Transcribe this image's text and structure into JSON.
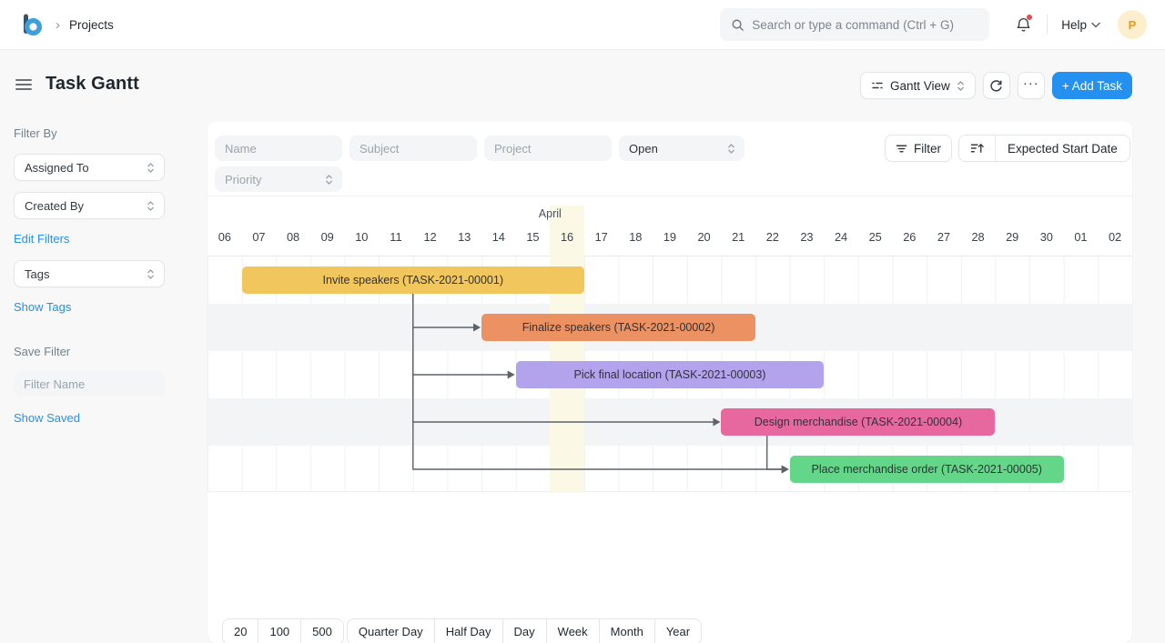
{
  "navbar": {
    "breadcrumb": "Projects",
    "breadcrumb_separator": "›",
    "search_placeholder": "Search or type a command (Ctrl + G)",
    "help_label": "Help",
    "avatar_initial": "P"
  },
  "header": {
    "title": "Task Gantt",
    "view_selector_label": "Gantt View",
    "more_options_glyph": "···",
    "add_task_label": "+ Add Task"
  },
  "sidebar": {
    "filter_by_label": "Filter By",
    "assigned_to_label": "Assigned To",
    "created_by_label": "Created By",
    "edit_filters_link": "Edit Filters",
    "tags_label": "Tags",
    "show_tags_link": "Show Tags",
    "save_filter_label": "Save Filter",
    "filter_name_placeholder": "Filter Name",
    "show_saved_link": "Show Saved"
  },
  "filters": {
    "name_placeholder": "Name",
    "subject_placeholder": "Subject",
    "project_placeholder": "Project",
    "status_value": "Open",
    "priority_placeholder": "Priority",
    "filter_button_label": "Filter",
    "sort_field_label": "Expected Start Date"
  },
  "gantt": {
    "month_label": "April",
    "dates": [
      "06",
      "07",
      "08",
      "09",
      "10",
      "11",
      "12",
      "13",
      "14",
      "15",
      "16",
      "17",
      "18",
      "19",
      "20",
      "21",
      "22",
      "23",
      "24",
      "25",
      "26",
      "27",
      "28",
      "29",
      "30",
      "01",
      "02"
    ],
    "today_date": "16",
    "tasks": [
      {
        "label": "Invite speakers (TASK-2021-00001)",
        "start_day": "07",
        "end_day": "16",
        "color": "#f1c65c"
      },
      {
        "label": "Finalize speakers (TASK-2021-00002)",
        "start_day": "14",
        "end_day": "21",
        "color": "#ec9162"
      },
      {
        "label": "Pick final location (TASK-2021-00003)",
        "start_day": "15",
        "end_day": "23",
        "color": "#b3a2ec"
      },
      {
        "label": "Design merchandise (TASK-2021-00004)",
        "start_day": "21",
        "end_day": "28",
        "color": "#e7689f"
      },
      {
        "label": "Place merchandise order (TASK-2021-00005)",
        "start_day": "23",
        "end_day": "30",
        "color": "#64d689"
      }
    ],
    "dependencies": [
      {
        "from": 0,
        "to": 1
      },
      {
        "from": 0,
        "to": 2
      },
      {
        "from": 0,
        "to": 3
      },
      {
        "from": 0,
        "to": 4
      },
      {
        "from": 3,
        "to": 4
      }
    ],
    "zoom_levels": [
      "20",
      "100",
      "500",
      "Quarter Day",
      "Half Day",
      "Day",
      "Week",
      "Month",
      "Year"
    ]
  }
}
